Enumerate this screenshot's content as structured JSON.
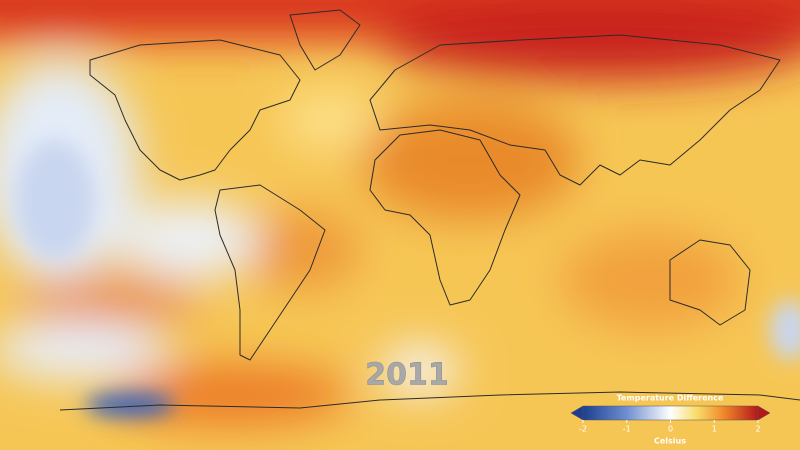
{
  "year": "2011",
  "colorbar": {
    "title": "Temperature Difference",
    "unit": "Celsius",
    "range": [
      -2,
      2
    ],
    "ticks": [
      -2,
      -1,
      0,
      1,
      2
    ]
  }
}
